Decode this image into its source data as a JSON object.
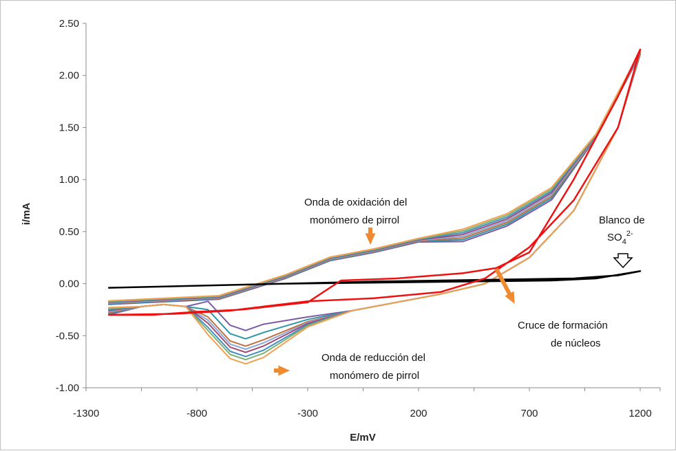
{
  "chart_data": {
    "type": "line",
    "title": "",
    "xlabel": "E/mV",
    "ylabel": "i/mA",
    "xlim": [
      -1300,
      1350
    ],
    "ylim": [
      -1.0,
      2.5
    ],
    "x_ticks": [
      -1300,
      -800,
      -300,
      200,
      700,
      1200
    ],
    "y_ticks": [
      -1.0,
      -0.5,
      0.0,
      0.5,
      1.0,
      1.5,
      2.0,
      2.5
    ],
    "x_tick_labels": [
      "-1300",
      "-800",
      "-300",
      "200",
      "700",
      "1200"
    ],
    "y_tick_labels": [
      "-1.00",
      "-0.50",
      "0.00",
      "0.50",
      "1.00",
      "1.50",
      "2.00",
      "2.50"
    ],
    "grid": false,
    "legend": "none",
    "annotations": {
      "oxidation_line1": "Onda de oxidación del",
      "oxidation_line2": "monómero de pirrol",
      "reduction_line1": "Onda de reducción del",
      "reduction_line2": "monómero de pirrol",
      "crossing_line1": "Cruce de formación",
      "crossing_line2": "de núcleos",
      "blank_line1": "Blanco de",
      "blank_so": "SO",
      "blank_sub": "4",
      "blank_sup": "2-"
    },
    "colors": {
      "blank": "#000000",
      "first_cycle": "#ee1111",
      "cycles": [
        "#7b5aa6",
        "#2e94a8",
        "#c2703e",
        "#8aa8d6",
        "#9e4a7a",
        "#3f8fc0",
        "#7fb070",
        "#f0a050"
      ],
      "arrow": "#f08a30"
    },
    "series": [
      {
        "color_key": "blank",
        "x": [
          -1200,
          -800,
          -400,
          0,
          400,
          800,
          1000,
          1200,
          1100,
          900,
          600,
          300,
          0,
          -400,
          -800,
          -1200
        ],
        "y": [
          -0.04,
          -0.02,
          0.0,
          0.01,
          0.02,
          0.03,
          0.05,
          0.12,
          0.08,
          0.05,
          0.04,
          0.03,
          0.02,
          0.0,
          -0.02,
          -0.04
        ]
      },
      {
        "color_key": "first_cycle",
        "x": [
          -1200,
          -1000,
          -800,
          -600,
          -300,
          -150,
          100,
          400,
          550,
          700,
          900,
          1100,
          1200,
          1100,
          900,
          700,
          500,
          300,
          0,
          -300,
          -500,
          -650,
          -900,
          -1200
        ],
        "y": [
          -0.3,
          -0.3,
          -0.27,
          -0.25,
          -0.18,
          0.03,
          0.05,
          0.1,
          0.15,
          0.3,
          1.0,
          1.8,
          2.25,
          1.5,
          0.8,
          0.35,
          0.05,
          -0.08,
          -0.14,
          -0.17,
          -0.22,
          -0.26,
          -0.29,
          -0.3
        ]
      }
    ],
    "cycle_family": {
      "oxidation_branch_x": [
        -1200,
        -1000,
        -700,
        -400,
        -200,
        0,
        200,
        400,
        600,
        800,
        1000,
        1200
      ],
      "oxidation_branch_y": [
        -0.2,
        -0.18,
        -0.15,
        0.05,
        0.22,
        0.3,
        0.4,
        0.5,
        0.65,
        0.9,
        1.4,
        2.2
      ],
      "reduction_troughs_mA": [
        -0.45,
        -0.53,
        -0.6,
        -0.63,
        -0.66,
        -0.7,
        -0.73,
        -0.77
      ]
    }
  }
}
